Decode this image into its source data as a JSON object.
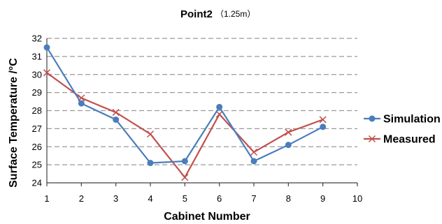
{
  "chart_data": {
    "type": "line",
    "title": "Point2",
    "subtitle": "（1.25m）",
    "xlabel": "Cabinet Number",
    "ylabel": "Surface Temperature /°C",
    "xlim": [
      1,
      10
    ],
    "ylim": [
      24,
      32
    ],
    "x_ticks": [
      "1",
      "2",
      "3",
      "4",
      "5",
      "6",
      "7",
      "8",
      "9",
      "10"
    ],
    "y_ticks": [
      "24",
      "25",
      "26",
      "27",
      "28",
      "29",
      "30",
      "31",
      "32"
    ],
    "grid": true,
    "legend_position": "right",
    "x": [
      1,
      2,
      3,
      4,
      5,
      6,
      7,
      8,
      9
    ],
    "series": [
      {
        "name": "Simulation",
        "color": "#4a7ebb",
        "marker": "circle",
        "values": [
          31.5,
          28.4,
          27.5,
          25.1,
          25.2,
          28.2,
          25.2,
          26.1,
          27.1
        ]
      },
      {
        "name": "Measured",
        "color": "#c0504d",
        "marker": "x",
        "values": [
          30.1,
          28.7,
          27.9,
          26.7,
          24.3,
          27.8,
          25.7,
          26.8,
          27.5
        ]
      }
    ]
  }
}
